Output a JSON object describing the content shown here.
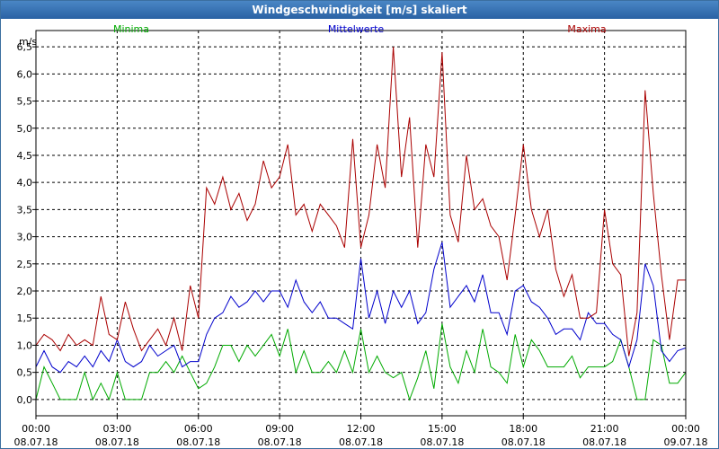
{
  "window": {
    "title": "Windgeschwindigkeit [m/s] skaliert"
  },
  "chart_data": {
    "type": "line",
    "title": "Windgeschwindigkeit [m/s] skaliert",
    "ylabel": "m/s",
    "xlabel": "",
    "ylim": [
      -0.3,
      6.8
    ],
    "xlim": [
      0,
      24
    ],
    "grid": true,
    "y_ticks": [
      "0,0",
      "0,5",
      "1,0",
      "1,5",
      "2,0",
      "2,5",
      "3,0",
      "3,5",
      "4,0",
      "4,5",
      "5,0",
      "5,5",
      "6,0",
      "6,5"
    ],
    "x_ticks": [
      {
        "time": "00:00",
        "date": "08.07.18"
      },
      {
        "time": "03:00",
        "date": "08.07.18"
      },
      {
        "time": "06:00",
        "date": "08.07.18"
      },
      {
        "time": "09:00",
        "date": "08.07.18"
      },
      {
        "time": "12:00",
        "date": "08.07.18"
      },
      {
        "time": "15:00",
        "date": "08.07.18"
      },
      {
        "time": "18:00",
        "date": "08.07.18"
      },
      {
        "time": "21:00",
        "date": "08.07.18"
      },
      {
        "time": "00:00",
        "date": "09.07.18"
      }
    ],
    "series": [
      {
        "name": "Minima",
        "color": "#00aa00",
        "x": [
          0,
          0.3,
          0.6,
          0.9,
          1.2,
          1.5,
          1.8,
          2.1,
          2.4,
          2.7,
          3.0,
          3.3,
          3.6,
          3.9,
          4.2,
          4.5,
          4.8,
          5.1,
          5.4,
          5.7,
          6.0,
          6.3,
          6.6,
          6.9,
          7.2,
          7.5,
          7.8,
          8.1,
          8.4,
          8.7,
          9.0,
          9.3,
          9.6,
          9.9,
          10.2,
          10.5,
          10.8,
          11.1,
          11.4,
          11.7,
          12.0,
          12.3,
          12.6,
          12.9,
          13.2,
          13.5,
          13.8,
          14.1,
          14.4,
          14.7,
          15.0,
          15.3,
          15.6,
          15.9,
          16.2,
          16.5,
          16.8,
          17.1,
          17.4,
          17.7,
          18.0,
          18.3,
          18.6,
          18.9,
          19.2,
          19.5,
          19.8,
          20.1,
          20.4,
          20.7,
          21.0,
          21.3,
          21.6,
          21.9,
          22.2,
          22.5,
          22.8,
          23.1,
          23.4,
          23.7,
          24.0
        ],
        "values": [
          0.0,
          0.6,
          0.3,
          0.0,
          0.0,
          0.0,
          0.5,
          0.0,
          0.3,
          0.0,
          0.5,
          0.0,
          0.0,
          0.0,
          0.5,
          0.5,
          0.7,
          0.5,
          0.8,
          0.5,
          0.2,
          0.3,
          0.6,
          1.0,
          1.0,
          0.7,
          1.0,
          0.8,
          1.0,
          1.2,
          0.8,
          1.3,
          0.5,
          0.9,
          0.5,
          0.5,
          0.7,
          0.5,
          0.9,
          0.5,
          1.3,
          0.5,
          0.8,
          0.5,
          0.4,
          0.5,
          0.0,
          0.4,
          0.9,
          0.2,
          1.4,
          0.6,
          0.3,
          0.9,
          0.5,
          1.3,
          0.6,
          0.5,
          0.3,
          1.2,
          0.6,
          1.1,
          0.9,
          0.6,
          0.6,
          0.6,
          0.8,
          0.4,
          0.6,
          0.6,
          0.6,
          0.7,
          1.1,
          0.6,
          0.0,
          0.0,
          1.1,
          1.0,
          0.3,
          0.3,
          0.5
        ]
      },
      {
        "name": "Mittelwerte",
        "color": "#0000cc",
        "x": [
          0,
          0.3,
          0.6,
          0.9,
          1.2,
          1.5,
          1.8,
          2.1,
          2.4,
          2.7,
          3.0,
          3.3,
          3.6,
          3.9,
          4.2,
          4.5,
          4.8,
          5.1,
          5.4,
          5.7,
          6.0,
          6.3,
          6.6,
          6.9,
          7.2,
          7.5,
          7.8,
          8.1,
          8.4,
          8.7,
          9.0,
          9.3,
          9.6,
          9.9,
          10.2,
          10.5,
          10.8,
          11.1,
          11.4,
          11.7,
          12.0,
          12.3,
          12.6,
          12.9,
          13.2,
          13.5,
          13.8,
          14.1,
          14.4,
          14.7,
          15.0,
          15.3,
          15.6,
          15.9,
          16.2,
          16.5,
          16.8,
          17.1,
          17.4,
          17.7,
          18.0,
          18.3,
          18.6,
          18.9,
          19.2,
          19.5,
          19.8,
          20.1,
          20.4,
          20.7,
          21.0,
          21.3,
          21.6,
          21.9,
          22.2,
          22.5,
          22.8,
          23.1,
          23.4,
          23.7,
          24.0
        ],
        "values": [
          0.6,
          0.9,
          0.6,
          0.5,
          0.7,
          0.6,
          0.8,
          0.6,
          0.9,
          0.7,
          1.1,
          0.7,
          0.6,
          0.7,
          1.0,
          0.8,
          0.9,
          1.0,
          0.6,
          0.7,
          0.7,
          1.2,
          1.5,
          1.6,
          1.9,
          1.7,
          1.8,
          2.0,
          1.8,
          2.0,
          2.0,
          1.7,
          2.2,
          1.8,
          1.6,
          1.8,
          1.5,
          1.5,
          1.4,
          1.3,
          2.6,
          1.5,
          2.0,
          1.4,
          2.0,
          1.7,
          2.0,
          1.4,
          1.6,
          2.4,
          2.9,
          1.7,
          1.9,
          2.1,
          1.8,
          2.3,
          1.6,
          1.6,
          1.2,
          2.0,
          2.1,
          1.8,
          1.7,
          1.5,
          1.2,
          1.3,
          1.3,
          1.1,
          1.6,
          1.4,
          1.4,
          1.2,
          1.1,
          0.6,
          1.1,
          2.5,
          2.1,
          0.9,
          0.7,
          0.9,
          0.95
        ]
      },
      {
        "name": "Maxima",
        "color": "#aa0000",
        "x": [
          0,
          0.3,
          0.6,
          0.9,
          1.2,
          1.5,
          1.8,
          2.1,
          2.4,
          2.7,
          3.0,
          3.3,
          3.6,
          3.9,
          4.2,
          4.5,
          4.8,
          5.1,
          5.4,
          5.7,
          6.0,
          6.3,
          6.6,
          6.9,
          7.2,
          7.5,
          7.8,
          8.1,
          8.4,
          8.7,
          9.0,
          9.3,
          9.6,
          9.9,
          10.2,
          10.5,
          10.8,
          11.1,
          11.4,
          11.7,
          12.0,
          12.3,
          12.6,
          12.9,
          13.2,
          13.5,
          13.8,
          14.1,
          14.4,
          14.7,
          15.0,
          15.3,
          15.6,
          15.9,
          16.2,
          16.5,
          16.8,
          17.1,
          17.4,
          17.7,
          18.0,
          18.3,
          18.6,
          18.9,
          19.2,
          19.5,
          19.8,
          20.1,
          20.4,
          20.7,
          21.0,
          21.3,
          21.6,
          21.9,
          22.2,
          22.5,
          22.8,
          23.1,
          23.4,
          23.7,
          24.0
        ],
        "values": [
          1.0,
          1.2,
          1.1,
          0.9,
          1.2,
          1.0,
          1.1,
          1.0,
          1.9,
          1.2,
          1.1,
          1.8,
          1.3,
          0.9,
          1.1,
          1.3,
          1.0,
          1.5,
          0.9,
          2.1,
          1.5,
          3.9,
          3.6,
          4.1,
          3.5,
          3.8,
          3.3,
          3.6,
          4.4,
          3.9,
          4.1,
          4.7,
          3.4,
          3.6,
          3.1,
          3.6,
          3.4,
          3.2,
          2.8,
          4.8,
          2.8,
          3.4,
          4.7,
          3.9,
          6.5,
          4.1,
          5.2,
          2.8,
          4.7,
          4.1,
          6.4,
          3.4,
          2.9,
          4.5,
          3.5,
          3.7,
          3.2,
          3.0,
          2.2,
          3.4,
          4.7,
          3.5,
          3.0,
          3.5,
          2.4,
          1.9,
          2.3,
          1.5,
          1.5,
          1.6,
          3.5,
          2.5,
          2.3,
          0.8,
          1.6,
          5.7,
          3.8,
          2.3,
          1.1,
          2.2,
          2.2
        ]
      }
    ]
  }
}
